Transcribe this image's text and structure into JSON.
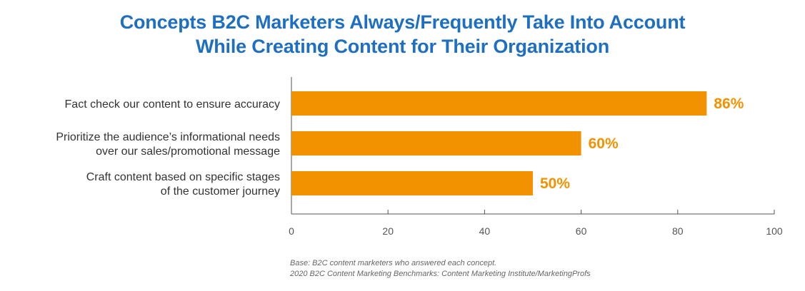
{
  "title_lines": [
    "Concepts B2C Marketers Always/Frequently Take Into Account",
    "While Creating Content for Their Organization"
  ],
  "colors": {
    "title": "#1f6fc0",
    "bar": "#f39200",
    "value_label": "#f39200",
    "axis": "#555555"
  },
  "chart_data": {
    "type": "bar",
    "orientation": "horizontal",
    "categories": [
      [
        "Fact check our content to ensure accuracy"
      ],
      [
        "Prioritize the audience’s informational needs",
        "over our sales/promotional message"
      ],
      [
        "Craft content based on specific stages",
        "of the customer journey"
      ]
    ],
    "values": [
      86,
      60,
      50
    ],
    "value_labels": [
      "86%",
      "60%",
      "50%"
    ],
    "xlim": [
      0,
      100
    ],
    "xticks": [
      0,
      20,
      40,
      60,
      80,
      100
    ],
    "xtick_labels": [
      "0",
      "20",
      "40",
      "60",
      "80",
      "100"
    ],
    "grid": false,
    "legend": "none"
  },
  "footnotes": [
    "Base: B2C content marketers who answered each concept.",
    "2020 B2C Content Marketing Benchmarks: Content Marketing Institute/MarketingProfs"
  ]
}
